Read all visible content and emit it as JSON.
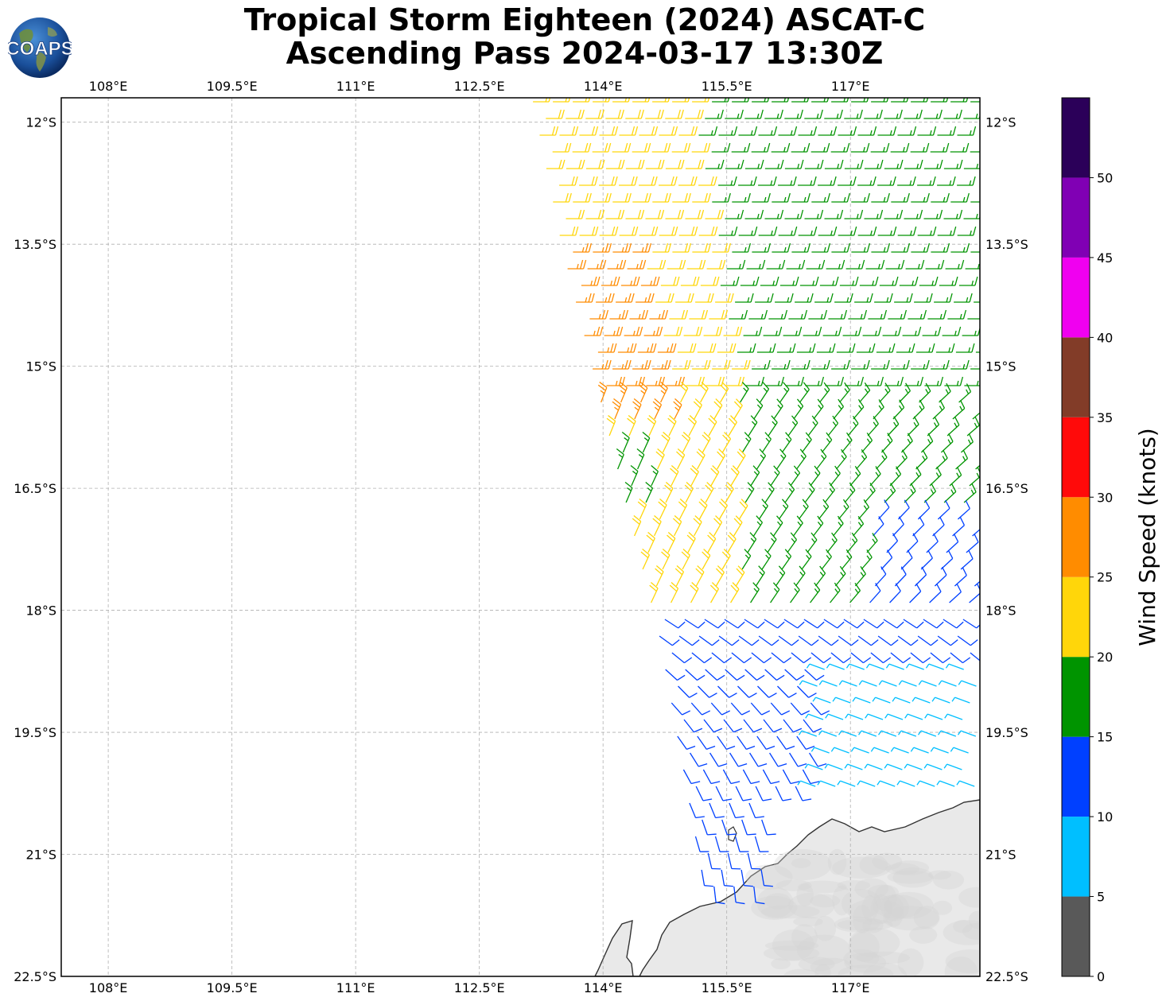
{
  "title": {
    "line1": "Tropical Storm Eighteen (2024) ASCAT-C",
    "line2": "Ascending Pass 2024-03-17 13:30Z"
  },
  "logo": {
    "text": "COAPS",
    "icon": "globe-logo-icon"
  },
  "chart_data": {
    "type": "wind-barb-map",
    "extent": {
      "lon_min": 107.43,
      "lon_max": 118.57,
      "lat_min": -22.5,
      "lat_max": -11.7
    },
    "lon_ticks": [
      "108°E",
      "109.5°E",
      "111°E",
      "112.5°E",
      "114°E",
      "115.5°E",
      "117°E"
    ],
    "lon_tick_values": [
      108,
      109.5,
      111,
      112.5,
      114,
      115.5,
      117
    ],
    "lat_ticks": [
      "12°S",
      "13.5°S",
      "15°S",
      "16.5°S",
      "18°S",
      "19.5°S",
      "21°S",
      "22.5°S"
    ],
    "lat_tick_values": [
      -12,
      -13.5,
      -15,
      -16.5,
      -18,
      -19.5,
      -21,
      -22.5
    ],
    "gridlines": true,
    "coastline_color": "#333333",
    "land_shading": "light gray",
    "colorbar": {
      "label": "Wind Speed (knots)",
      "tick_labels": [
        "0",
        "5",
        "10",
        "15",
        "20",
        "25",
        "30",
        "35",
        "40",
        "45",
        "50"
      ],
      "bins": [
        {
          "min": 0,
          "max": 5,
          "color": "#595959"
        },
        {
          "min": 5,
          "max": 10,
          "color": "#00bfff"
        },
        {
          "min": 10,
          "max": 15,
          "color": "#0040ff"
        },
        {
          "min": 15,
          "max": 20,
          "color": "#009400"
        },
        {
          "min": 20,
          "max": 25,
          "color": "#ffd60a"
        },
        {
          "min": 25,
          "max": 30,
          "color": "#ff8c00"
        },
        {
          "min": 30,
          "max": 35,
          "color": "#ff0a0a"
        },
        {
          "min": 35,
          "max": 40,
          "color": "#823c28"
        },
        {
          "min": 40,
          "max": 45,
          "color": "#f000f0"
        },
        {
          "min": 45,
          "max": 50,
          "color": "#8000b4"
        },
        {
          "min": 50,
          "max": 55,
          "color": "#2b0059"
        }
      ]
    },
    "swath_summary": [
      {
        "region": "north-west",
        "wind_kt": "20-25",
        "flow": "easterly"
      },
      {
        "region": "north-east",
        "wind_kt": "15-20",
        "flow": "easterly"
      },
      {
        "region": "west edge 13.5S-16S",
        "wind_kt": "25-30",
        "flow": "easterly"
      },
      {
        "region": "central 16S-18S",
        "wind_kt": "15-25",
        "flow": "south-easterly"
      },
      {
        "region": "south 18S-21.5S",
        "wind_kt": "10-15",
        "flow": "cyclonic"
      },
      {
        "region": "south-east 19S-20.5S",
        "wind_kt": "5-10",
        "flow": "light"
      }
    ]
  }
}
